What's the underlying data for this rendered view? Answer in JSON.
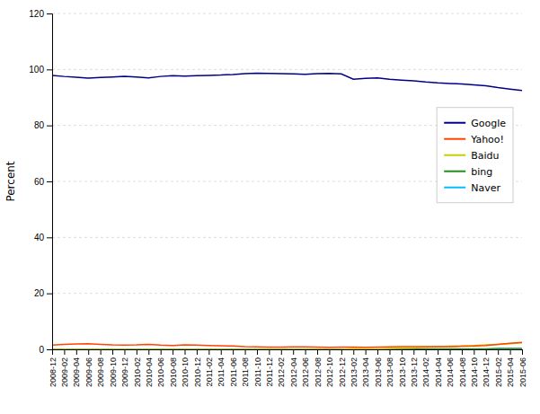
{
  "chart_data": {
    "type": "line",
    "ylabel": "Percent",
    "categories": [
      "2008-12",
      "2009-02",
      "2009-04",
      "2009-06",
      "2009-08",
      "2009-10",
      "2009-12",
      "2010-02",
      "2010-04",
      "2010-06",
      "2010-08",
      "2010-10",
      "2010-12",
      "2011-02",
      "2011-04",
      "2011-06",
      "2011-08",
      "2011-10",
      "2011-12",
      "2012-02",
      "2012-04",
      "2012-06",
      "2012-08",
      "2012-10",
      "2012-12",
      "2013-02",
      "2013-04",
      "2013-06",
      "2013-08",
      "2013-10",
      "2013-12",
      "2014-02",
      "2014-04",
      "2014-06",
      "2014-08",
      "2014-10",
      "2014-12",
      "2015-02",
      "2015-04",
      "2015-06"
    ],
    "series": [
      {
        "name": "Google",
        "color": "#00008B",
        "values": [
          97.9,
          97.5,
          97.2,
          96.9,
          97.1,
          97.3,
          97.5,
          97.3,
          97.0,
          97.5,
          97.8,
          97.6,
          97.8,
          97.9,
          98.0,
          98.2,
          98.5,
          98.7,
          98.6,
          98.5,
          98.4,
          98.3,
          98.5,
          98.6,
          98.4,
          96.5,
          96.8,
          97.0,
          96.5,
          96.2,
          95.9,
          95.5,
          95.2,
          95.0,
          94.8,
          94.5,
          94.2,
          93.5,
          93.0,
          92.5
        ]
      },
      {
        "name": "Yahoo!",
        "color": "#FF4500",
        "values": [
          1.5,
          1.8,
          1.9,
          2.0,
          1.8,
          1.6,
          1.5,
          1.6,
          1.8,
          1.5,
          1.4,
          1.6,
          1.5,
          1.4,
          1.3,
          1.2,
          1.0,
          0.9,
          0.8,
          0.8,
          0.9,
          0.9,
          0.8,
          0.7,
          0.8,
          0.8,
          0.7,
          0.8,
          0.9,
          1.0,
          1.0,
          1.0,
          1.0,
          1.0,
          1.1,
          1.2,
          1.4,
          1.8,
          2.2,
          2.5
        ]
      },
      {
        "name": "Baidu",
        "color": "#CCCC00",
        "values": [
          0.0,
          0.0,
          0.0,
          0.0,
          0.0,
          0.0,
          0.0,
          0.0,
          0.0,
          0.0,
          0.0,
          0.0,
          0.0,
          0.0,
          0.0,
          0.0,
          0.0,
          0.0,
          0.0,
          0.0,
          0.0,
          0.0,
          0.0,
          0.0,
          0.0,
          0.3,
          0.2,
          0.2,
          0.3,
          0.4,
          0.5,
          0.8,
          1.0,
          1.1,
          1.2,
          1.4,
          1.6,
          1.8,
          2.0,
          2.3
        ]
      },
      {
        "name": "bing",
        "color": "#228B22",
        "values": [
          0.0,
          0.0,
          0.0,
          0.0,
          0.0,
          0.0,
          0.0,
          0.0,
          0.0,
          0.0,
          0.0,
          0.0,
          0.0,
          0.0,
          0.0,
          0.0,
          0.0,
          0.0,
          0.0,
          0.0,
          0.0,
          0.0,
          0.0,
          0.0,
          0.0,
          0.1,
          0.1,
          0.1,
          0.1,
          0.1,
          0.1,
          0.2,
          0.2,
          0.2,
          0.2,
          0.2,
          0.2,
          0.3,
          0.3,
          0.3
        ]
      },
      {
        "name": "Naver",
        "color": "#00BFFF",
        "values": [
          0.0,
          0.0,
          0.0,
          0.0,
          0.0,
          0.0,
          0.0,
          0.0,
          0.0,
          0.0,
          0.0,
          0.0,
          0.0,
          0.0,
          0.0,
          0.0,
          0.0,
          0.0,
          0.0,
          0.0,
          0.0,
          0.0,
          0.0,
          0.0,
          0.0,
          0.0,
          0.0,
          0.0,
          0.0,
          0.0,
          0.0,
          0.0,
          0.0,
          0.0,
          0.0,
          0.0,
          0.0,
          0.0,
          0.0,
          0.0
        ]
      }
    ],
    "ylim": [
      0,
      120
    ],
    "yticks": [
      0,
      20,
      40,
      60,
      80,
      100,
      120
    ],
    "grid": true,
    "legend": "upper right"
  }
}
